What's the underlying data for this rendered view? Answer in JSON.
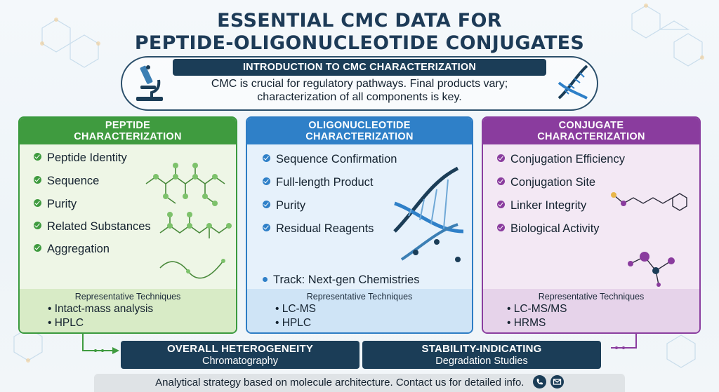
{
  "title": {
    "line1": "ESSENTIAL CMC DATA FOR",
    "line2": "PEPTIDE-OLIGONUCLEOTIDE CONJUGATES"
  },
  "intro": {
    "heading": "INTRODUCTION TO CMC CHARACTERIZATION",
    "line1": "CMC is crucial for regulatory pathways. Final products vary;",
    "line2": "characterization of all components is key."
  },
  "panels": [
    {
      "title_line1": "PEPTIDE",
      "title_line2": "CHARACTERIZATION",
      "color": "#3f9b3f",
      "items": [
        "Peptide Identity",
        "Sequence",
        "Purity",
        "Related Substances",
        "Aggregation"
      ],
      "techniques_title": "Representative Techniques",
      "techniques": [
        "Intact-mass analysis",
        "HPLC"
      ]
    },
    {
      "title_line1": "OLIGONUCLEOTIDE",
      "title_line2": "CHARACTERIZATION",
      "color": "#2f80c8",
      "items": [
        "Sequence Confirmation",
        "Full-length Product",
        "Purity",
        "Residual Reagents"
      ],
      "track": "Track: Next-gen Chemistries",
      "techniques_title": "Representative Techniques",
      "techniques": [
        "LC-MS",
        "HPLC"
      ]
    },
    {
      "title_line1": "CONJUGATE",
      "title_line2": "CHARACTERIZATION",
      "color": "#8a3c9e",
      "items": [
        "Conjugation Efficiency",
        "Conjugation Site",
        "Linker Integrity",
        "Biological Activity"
      ],
      "techniques_title": "Representative Techniques",
      "techniques": [
        "LC-MS/MS",
        "HRMS"
      ]
    }
  ],
  "bottom": [
    {
      "title": "OVERALL HETEROGENEITY",
      "subtitle": "Chromatography"
    },
    {
      "title": "STABILITY-INDICATING",
      "subtitle": "Degradation Studies"
    }
  ],
  "footer": {
    "text": "Analytical strategy based on molecule architecture. Contact us for detailed info."
  },
  "icons": [
    "microscope-icon",
    "dna-icon",
    "molecule-icon",
    "phone-icon",
    "email-icon"
  ]
}
